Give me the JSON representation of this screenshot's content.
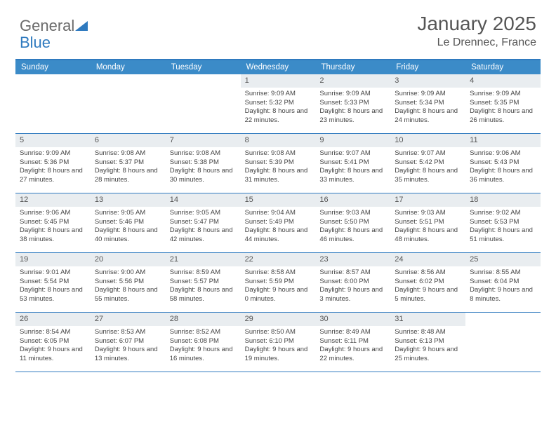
{
  "logo": {
    "text1": "General",
    "text2": "Blue"
  },
  "title": "January 2025",
  "location": "Le Drennec, France",
  "colors": {
    "header_bg": "#3b8bc8",
    "border": "#2f7abf",
    "daynum_bg": "#e9edf0",
    "text": "#444444",
    "title_text": "#555555",
    "logo_gray": "#6b6b6b",
    "logo_blue": "#2f7abf"
  },
  "dayNames": [
    "Sunday",
    "Monday",
    "Tuesday",
    "Wednesday",
    "Thursday",
    "Friday",
    "Saturday"
  ],
  "startOffset": 3,
  "days": [
    {
      "n": 1,
      "sr": "9:09 AM",
      "ss": "5:32 PM",
      "dl": "8 hours and 22 minutes."
    },
    {
      "n": 2,
      "sr": "9:09 AM",
      "ss": "5:33 PM",
      "dl": "8 hours and 23 minutes."
    },
    {
      "n": 3,
      "sr": "9:09 AM",
      "ss": "5:34 PM",
      "dl": "8 hours and 24 minutes."
    },
    {
      "n": 4,
      "sr": "9:09 AM",
      "ss": "5:35 PM",
      "dl": "8 hours and 26 minutes."
    },
    {
      "n": 5,
      "sr": "9:09 AM",
      "ss": "5:36 PM",
      "dl": "8 hours and 27 minutes."
    },
    {
      "n": 6,
      "sr": "9:08 AM",
      "ss": "5:37 PM",
      "dl": "8 hours and 28 minutes."
    },
    {
      "n": 7,
      "sr": "9:08 AM",
      "ss": "5:38 PM",
      "dl": "8 hours and 30 minutes."
    },
    {
      "n": 8,
      "sr": "9:08 AM",
      "ss": "5:39 PM",
      "dl": "8 hours and 31 minutes."
    },
    {
      "n": 9,
      "sr": "9:07 AM",
      "ss": "5:41 PM",
      "dl": "8 hours and 33 minutes."
    },
    {
      "n": 10,
      "sr": "9:07 AM",
      "ss": "5:42 PM",
      "dl": "8 hours and 35 minutes."
    },
    {
      "n": 11,
      "sr": "9:06 AM",
      "ss": "5:43 PM",
      "dl": "8 hours and 36 minutes."
    },
    {
      "n": 12,
      "sr": "9:06 AM",
      "ss": "5:45 PM",
      "dl": "8 hours and 38 minutes."
    },
    {
      "n": 13,
      "sr": "9:05 AM",
      "ss": "5:46 PM",
      "dl": "8 hours and 40 minutes."
    },
    {
      "n": 14,
      "sr": "9:05 AM",
      "ss": "5:47 PM",
      "dl": "8 hours and 42 minutes."
    },
    {
      "n": 15,
      "sr": "9:04 AM",
      "ss": "5:49 PM",
      "dl": "8 hours and 44 minutes."
    },
    {
      "n": 16,
      "sr": "9:03 AM",
      "ss": "5:50 PM",
      "dl": "8 hours and 46 minutes."
    },
    {
      "n": 17,
      "sr": "9:03 AM",
      "ss": "5:51 PM",
      "dl": "8 hours and 48 minutes."
    },
    {
      "n": 18,
      "sr": "9:02 AM",
      "ss": "5:53 PM",
      "dl": "8 hours and 51 minutes."
    },
    {
      "n": 19,
      "sr": "9:01 AM",
      "ss": "5:54 PM",
      "dl": "8 hours and 53 minutes."
    },
    {
      "n": 20,
      "sr": "9:00 AM",
      "ss": "5:56 PM",
      "dl": "8 hours and 55 minutes."
    },
    {
      "n": 21,
      "sr": "8:59 AM",
      "ss": "5:57 PM",
      "dl": "8 hours and 58 minutes."
    },
    {
      "n": 22,
      "sr": "8:58 AM",
      "ss": "5:59 PM",
      "dl": "9 hours and 0 minutes."
    },
    {
      "n": 23,
      "sr": "8:57 AM",
      "ss": "6:00 PM",
      "dl": "9 hours and 3 minutes."
    },
    {
      "n": 24,
      "sr": "8:56 AM",
      "ss": "6:02 PM",
      "dl": "9 hours and 5 minutes."
    },
    {
      "n": 25,
      "sr": "8:55 AM",
      "ss": "6:04 PM",
      "dl": "9 hours and 8 minutes."
    },
    {
      "n": 26,
      "sr": "8:54 AM",
      "ss": "6:05 PM",
      "dl": "9 hours and 11 minutes."
    },
    {
      "n": 27,
      "sr": "8:53 AM",
      "ss": "6:07 PM",
      "dl": "9 hours and 13 minutes."
    },
    {
      "n": 28,
      "sr": "8:52 AM",
      "ss": "6:08 PM",
      "dl": "9 hours and 16 minutes."
    },
    {
      "n": 29,
      "sr": "8:50 AM",
      "ss": "6:10 PM",
      "dl": "9 hours and 19 minutes."
    },
    {
      "n": 30,
      "sr": "8:49 AM",
      "ss": "6:11 PM",
      "dl": "9 hours and 22 minutes."
    },
    {
      "n": 31,
      "sr": "8:48 AM",
      "ss": "6:13 PM",
      "dl": "9 hours and 25 minutes."
    }
  ],
  "labels": {
    "sunrise": "Sunrise:",
    "sunset": "Sunset:",
    "daylight": "Daylight:"
  }
}
